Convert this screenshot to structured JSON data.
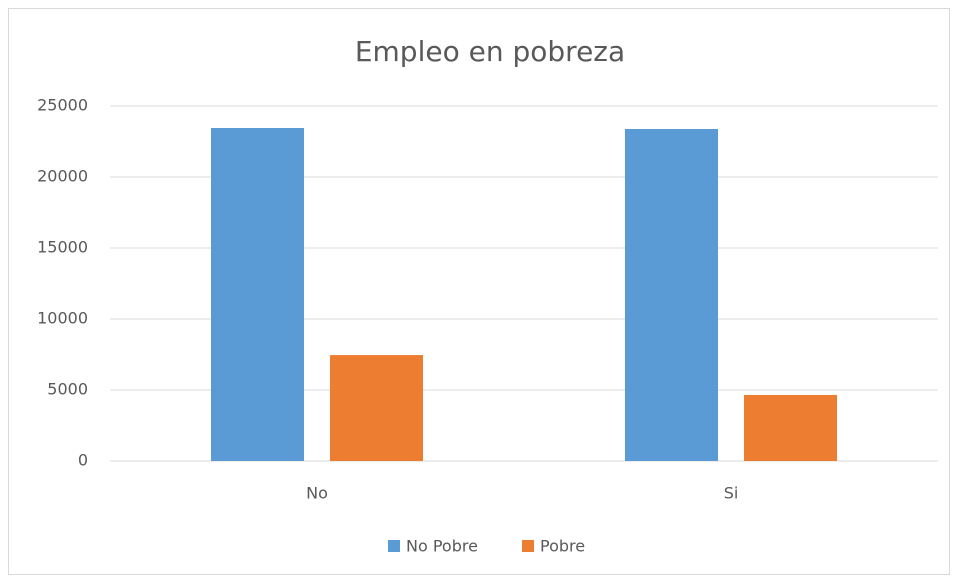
{
  "chart_data": {
    "type": "bar",
    "title": "Empleo en pobreza",
    "categories": [
      "No",
      "Si"
    ],
    "series": [
      {
        "name": "No Pobre",
        "color": "#5b9bd5",
        "values": [
          23450,
          23380
        ]
      },
      {
        "name": "Pobre",
        "color": "#ed7d31",
        "values": [
          7460,
          4650
        ]
      }
    ],
    "ylim": [
      0,
      25000
    ],
    "yticks": [
      0,
      5000,
      10000,
      15000,
      20000,
      25000
    ],
    "grid": true,
    "legend": "bottom"
  }
}
